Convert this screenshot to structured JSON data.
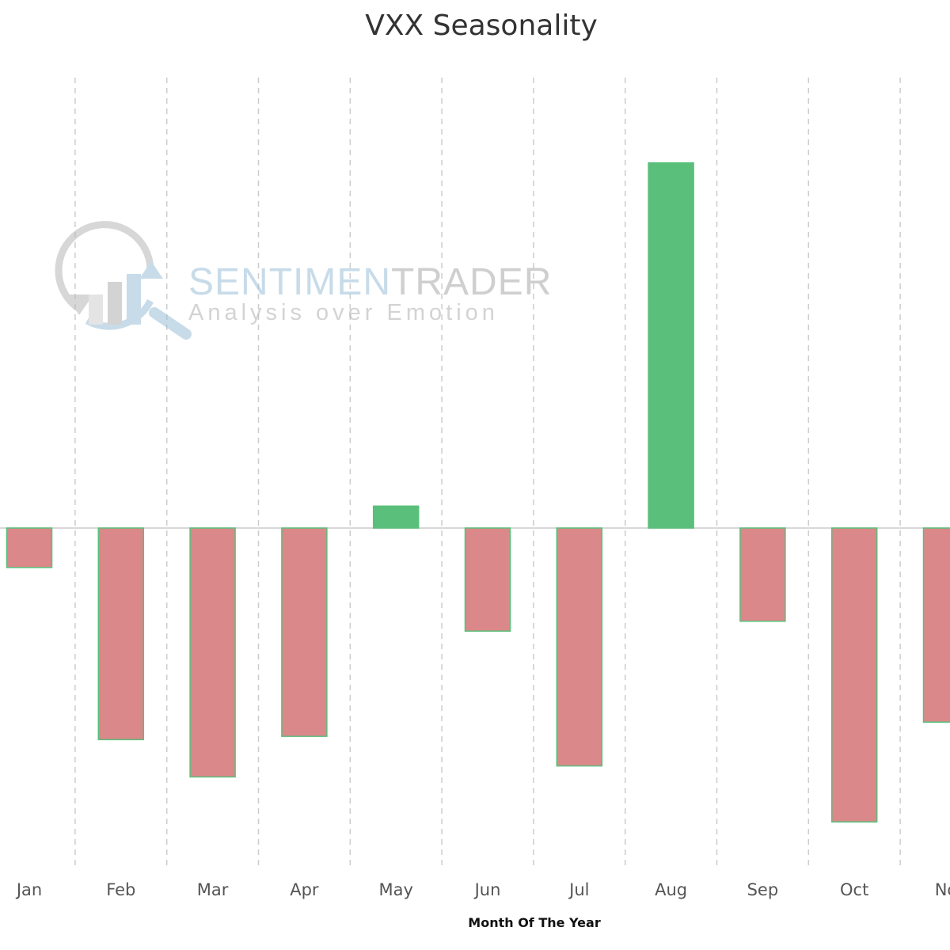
{
  "chart_data": {
    "type": "bar",
    "title": "VXX Seasonality",
    "xlabel": "Month Of The Year",
    "ylabel": "",
    "categories": [
      "Jan",
      "Feb",
      "Mar",
      "Apr",
      "May",
      "Jun",
      "Jul",
      "Aug",
      "Sep",
      "Oct",
      "No"
    ],
    "values": [
      -3.6,
      -19.3,
      -22.7,
      -19.0,
      2.0,
      -9.4,
      -21.7,
      33.3,
      -8.5,
      -26.8,
      -17.7
    ],
    "ylim": [
      -31,
      42
    ],
    "grid": "vertical dashed",
    "colors": {
      "positive": "#5abf7a",
      "negative": "#da8889",
      "bar_border": "#5abf7a",
      "zero_line": "#cccccc",
      "grid": "#cccccc"
    }
  },
  "watermark": {
    "brand_light": "SENTIMEN",
    "brand_dark": "TRADER",
    "tagline": "Analysis over Emotion"
  }
}
